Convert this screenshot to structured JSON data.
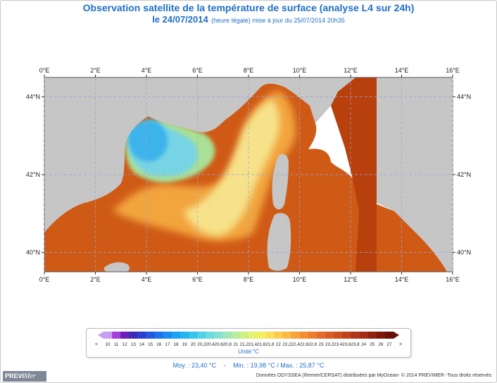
{
  "header": {
    "title": "Observation satellite de la température de surface (analyse L4 sur 24h)",
    "date": "le 24/07/2014",
    "subtitle": "(heure légale) mise à jour du 25/07/2014 20h35"
  },
  "axes": {
    "lon_labels": [
      "0°E",
      "2°E",
      "4°E",
      "6°E",
      "8°E",
      "10°E",
      "12°E",
      "14°E",
      "16°E"
    ],
    "lat_labels": [
      "44°N",
      "42°N",
      "40°N"
    ],
    "lon_range": [
      0,
      16
    ],
    "lat_range": [
      39.5,
      44.5
    ]
  },
  "colorbar": {
    "ticks": [
      "10",
      "11",
      "12",
      "13",
      "14",
      "15",
      "16",
      "17",
      "18",
      "19",
      "20",
      "20,2",
      "20,4",
      "20,6",
      "20,8",
      "21",
      "21,2",
      "21,4",
      "21,6",
      "21,8",
      "22",
      "22,2",
      "22,4",
      "22,6",
      "22,8",
      "23",
      "23,2",
      "23,4",
      "23,6",
      "23,8",
      "24",
      "25",
      "26",
      "27"
    ],
    "low_marker": "<",
    "high_marker": ">",
    "unit_label": "Unité:°C",
    "colors": [
      "#c79ef0",
      "#a33fd9",
      "#6b1fb8",
      "#3b2cb5",
      "#2a3fd1",
      "#2557e0",
      "#1f72ea",
      "#1a8cf0",
      "#1aa2f2",
      "#22b5f0",
      "#33c5ec",
      "#4fd1e8",
      "#6cdbe0",
      "#86e0d0",
      "#a0e6b8",
      "#b8eb9c",
      "#cfef82",
      "#e4f26c",
      "#f5ef62",
      "#fbe05a",
      "#fccc4e",
      "#fbb843",
      "#f8a33a",
      "#f39034",
      "#ec7e2e",
      "#e26c29",
      "#d95c24",
      "#cc4f20",
      "#bf421c",
      "#b13718",
      "#a22d14",
      "#911f10",
      "#7e150c",
      "#6a0e08"
    ]
  },
  "stats": {
    "moy": "Moy. : 23,40 °C",
    "sep": "-",
    "minmax": "Min. : 19,98 °C / Max. : 25,87 °C"
  },
  "logo": {
    "prev": "PREVI",
    "mer": "Mer"
  },
  "credit": "Données ODYSSEA (Ifremer/CERSAT) distribuées par MyOcean- © 2014 PREVIMER -Tous droits réservés",
  "map_colors": {
    "land": "#c6c6c6",
    "sea_dark": "#b8400d",
    "sea": "#cf5a16",
    "sea_mid": "#e37a24",
    "warm": "#f2a43c",
    "yellow": "#f5d56a",
    "pale": "#f6e28a",
    "green": "#a9e095",
    "cyan": "#77d4e4",
    "blue": "#3eb3ec",
    "grid": "#9aa3d6"
  }
}
